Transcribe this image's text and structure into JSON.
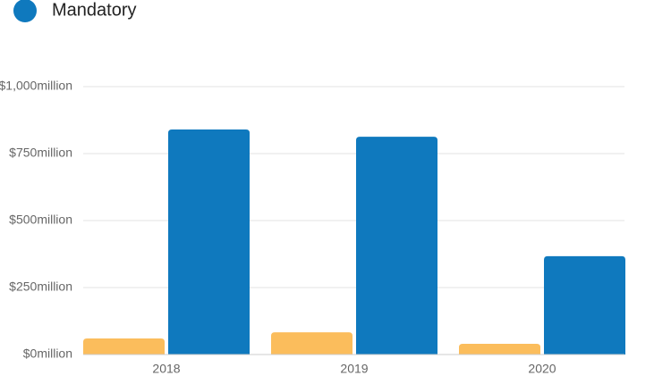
{
  "chart_data": {
    "type": "bar",
    "categories": [
      "2018",
      "2019",
      "2020"
    ],
    "series": [
      {
        "color": "#fbbd5c",
        "values": [
          60,
          83,
          40
        ]
      },
      {
        "name": "Mandatory",
        "color": "#0f79be",
        "values": [
          840,
          813,
          367
        ]
      }
    ],
    "ylim": [
      0,
      1000
    ],
    "yticks": [
      {
        "value": 0,
        "label": "$0million"
      },
      {
        "value": 250,
        "label": "$250million"
      },
      {
        "value": 500,
        "label": "$500million"
      },
      {
        "value": 750,
        "label": "$750million"
      },
      {
        "value": 1000,
        "label": "$1,000million"
      }
    ],
    "grid": true
  }
}
